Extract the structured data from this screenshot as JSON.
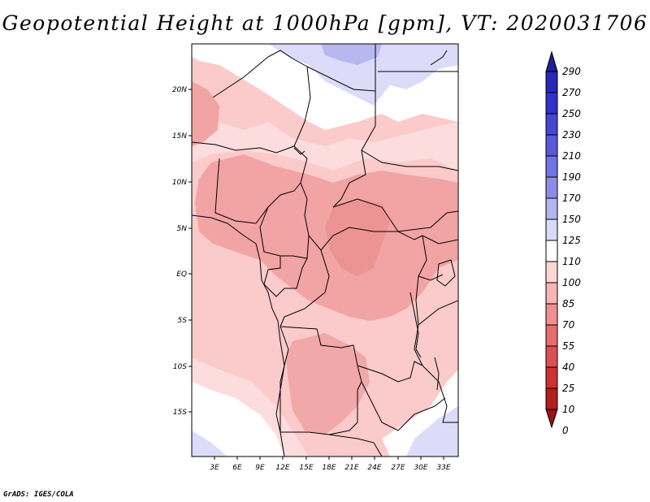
{
  "title": "Geopotential Height at 1000hPa [gpm], VT: 2020031706",
  "credit": "GrADS: IGES/COLA",
  "map": {
    "lat_labels": [
      "20N",
      "15N",
      "10N",
      "5N",
      "EQ",
      "5S",
      "10S",
      "15S"
    ],
    "lon_labels": [
      "3E",
      "6E",
      "9E",
      "12E",
      "15E",
      "18E",
      "21E",
      "24E",
      "27E",
      "30E",
      "33E"
    ]
  },
  "colorbar": {
    "levels": [
      "290",
      "270",
      "250",
      "230",
      "210",
      "190",
      "170",
      "150",
      "125",
      "110",
      "100",
      "85",
      "70",
      "55",
      "40",
      "25",
      "10",
      "0"
    ],
    "colors": [
      "#1e1e96",
      "#2828b4",
      "#3232c8",
      "#4646d2",
      "#5a5ad9",
      "#7373e1",
      "#8c8ce8",
      "#b4b4f0",
      "#d9d9fa",
      "#ffffff",
      "#fcd6d6",
      "#f7b4b4",
      "#f09090",
      "#e86e6e",
      "#dc5050",
      "#cd3232",
      "#b41e1e",
      "#961414"
    ]
  }
}
